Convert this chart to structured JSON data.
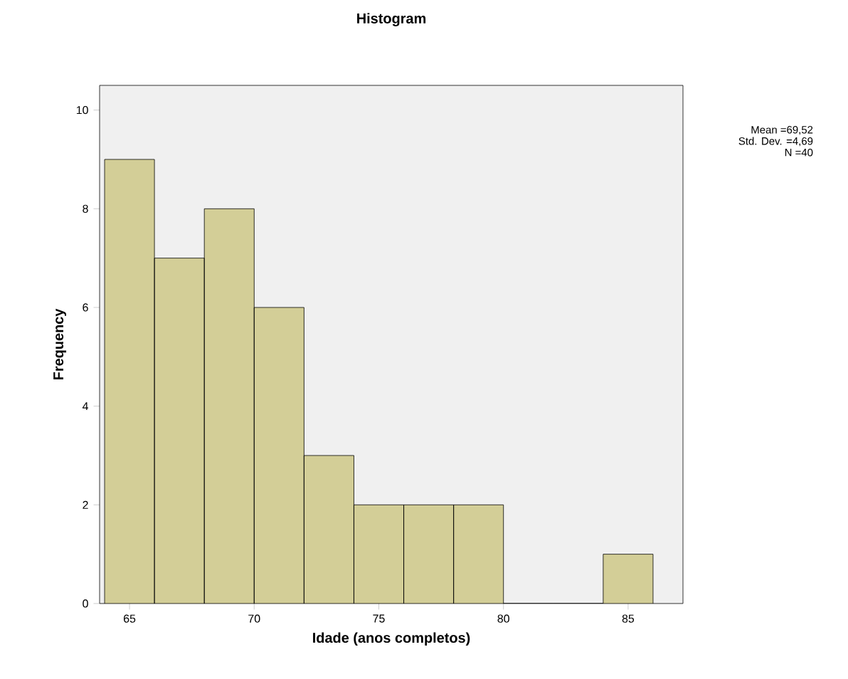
{
  "chart_data": {
    "type": "histogram",
    "title": "Histogram",
    "xlabel": "Idade (anos completos)",
    "ylabel": "Frequency",
    "bins": [
      64,
      66,
      68,
      70,
      72,
      74,
      76,
      78,
      80,
      82,
      84,
      86
    ],
    "values": [
      9,
      7,
      8,
      6,
      3,
      2,
      2,
      2,
      0,
      0,
      1
    ],
    "color": "#d3ce97",
    "xlim": [
      63.8,
      87.2
    ],
    "xticks": [
      65,
      70,
      75,
      80,
      85
    ],
    "ylim": [
      0,
      10.5
    ],
    "yticks": [
      0,
      2,
      4,
      6,
      8,
      10
    ],
    "grid": false,
    "annotations": [
      "Mean =69,52",
      "Std. Dev. =4,69",
      "N =40"
    ]
  }
}
